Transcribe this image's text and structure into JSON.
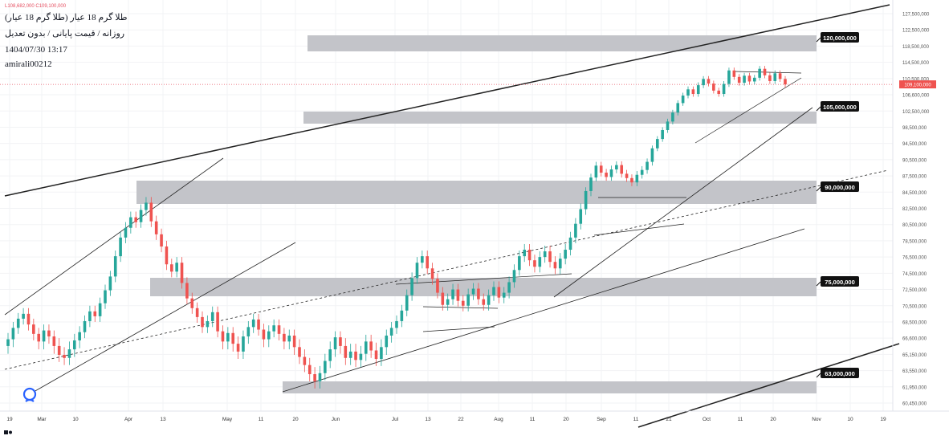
{
  "chart_data": {
    "type": "candlestick",
    "title": "طلا گرم 18 عیار (طلا گرم 18 عیار)",
    "subtitle": "روزانه / قیمت پایانی / بدون تعدیل",
    "datetime": "1404/07/30 13:17",
    "author": "amirali00212",
    "ohlc_readout": "L108,682,000  C109,100,000",
    "current_price_label": "109,100,000",
    "y_ticks": [
      "127,500,000",
      "122,500,000",
      "118,500,000",
      "114,500,000",
      "110,500,000",
      "106,600,000",
      "102,500,000",
      "98,500,000",
      "94,500,000",
      "90,500,000",
      "87,500,000",
      "84,500,000",
      "82,500,000",
      "80,500,000",
      "78,500,000",
      "76,500,000",
      "74,500,000",
      "72,500,000",
      "70,500,000",
      "68,500,000",
      "66,600,000",
      "65,150,000",
      "63,550,000",
      "61,950,000",
      "60,450,000"
    ],
    "x_ticks": [
      "19",
      "Mar",
      "10",
      "Apr",
      "13",
      "May",
      "11",
      "20",
      "Jun",
      "Jul",
      "13",
      "22",
      "Aug",
      "11",
      "20",
      "Sep",
      "11",
      "21",
      "Oct",
      "11",
      "20",
      "Nov",
      "10",
      "19"
    ],
    "levels": [
      {
        "label": "120,000,000",
        "value": 120000000
      },
      {
        "label": "105,000,000",
        "value": 105000000
      },
      {
        "label": "90,000,000",
        "value": 90000000
      },
      {
        "label": "75,000,000",
        "value": 75000000
      },
      {
        "label": "63,000,000",
        "value": 63000000
      }
    ],
    "closes": [
      66500000,
      67800000,
      68900000,
      69500000,
      68200000,
      67100000,
      66300000,
      67500000,
      66800000,
      65900000,
      65100000,
      64800000,
      65600000,
      66400000,
      67300000,
      68600000,
      69800000,
      69200000,
      70800000,
      72400000,
      74100000,
      76600000,
      78900000,
      80100000,
      81400000,
      80800000,
      82300000,
      83200000,
      80900000,
      79300000,
      77800000,
      75600000,
      74700000,
      75800000,
      73300000,
      71400000,
      70200000,
      69100000,
      67900000,
      68600000,
      69700000,
      67400000,
      66300000,
      67200000,
      66100000,
      65400000,
      66800000,
      67900000,
      68800000,
      67600000,
      66500000,
      67400000,
      68100000,
      67100000,
      66300000,
      66900000,
      65800000,
      64900000,
      64100000,
      63200000,
      62500000,
      63300000,
      64500000,
      65600000,
      66700000,
      65900000,
      64800000,
      65400000,
      64600000,
      65200000,
      66300000,
      65500000,
      64700000,
      65800000,
      66900000,
      67800000,
      68600000,
      69900000,
      71800000,
      73900000,
      75800000,
      76600000,
      75100000,
      73800000,
      72100000,
      70600000,
      71300000,
      72500000,
      71100000,
      70500000,
      71900000,
      72600000,
      71300000,
      70600000,
      71800000,
      72800000,
      71500000,
      72100000,
      73400000,
      74900000,
      76600000,
      77400000,
      76100000,
      75300000,
      76500000,
      77200000,
      75900000,
      75100000,
      76300000,
      77400000,
      78900000,
      80600000,
      82400000,
      84700000,
      87200000,
      89400000,
      88100000,
      87300000,
      88700000,
      89500000,
      87900000,
      87100000,
      86300000,
      87700000,
      88600000,
      90100000,
      93300000,
      95600000,
      97800000,
      99900000,
      102100000,
      104500000,
      106400000,
      107900000,
      106800000,
      108900000,
      110400000,
      109300000,
      107600000,
      106800000,
      109200000,
      112500000,
      110900000,
      109500000,
      111200000,
      109800000,
      110700000,
      112900000,
      111300000,
      109900000,
      111800000,
      110400000,
      109100000
    ]
  }
}
